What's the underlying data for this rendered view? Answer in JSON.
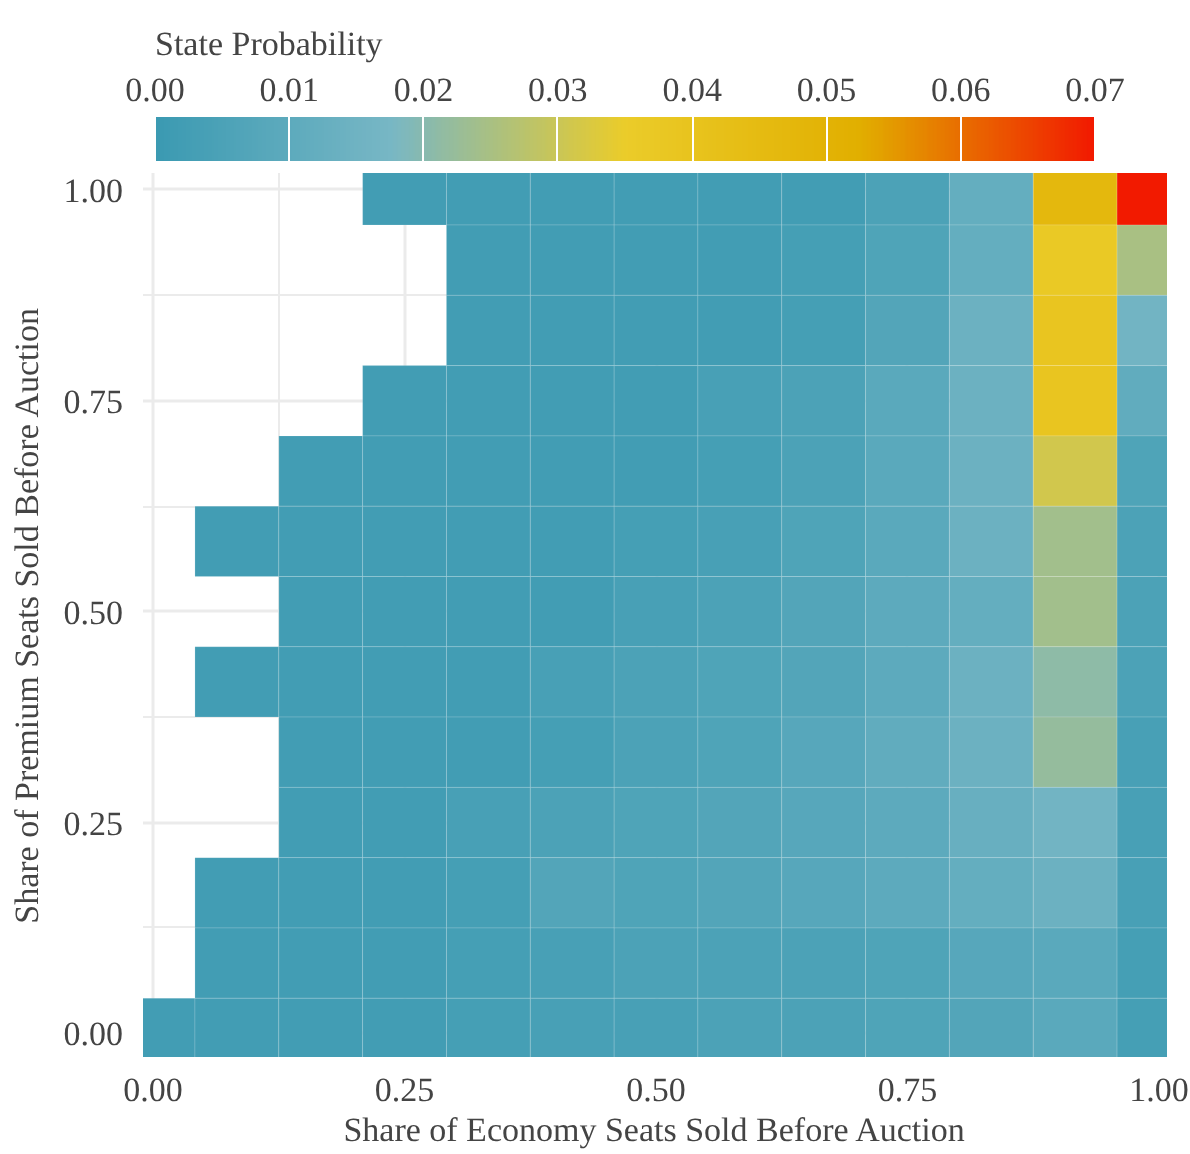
{
  "chart_data": {
    "type": "heatmap",
    "xlabel": "Share of Economy Seats Sold Before Auction",
    "ylabel": "Share of Premium Seats Sold Before Auction",
    "clabel": "State Probability",
    "x": [
      0,
      0.0833,
      0.1667,
      0.25,
      0.3333,
      0.4167,
      0.5,
      0.5833,
      0.6667,
      0.75,
      0.8333,
      0.9167,
      1
    ],
    "y": [
      1,
      0.9167,
      0.8333,
      0.75,
      0.6667,
      0.5833,
      0.5,
      0.4167,
      0.3333,
      0.25,
      0.1667,
      0.0833,
      0
    ],
    "cells": [
      [
        null,
        null,
        null,
        0.002,
        0.002,
        0.002,
        0.002,
        0.002,
        0.002,
        0.005,
        0.012,
        0.047,
        0.07
      ],
      [
        null,
        null,
        null,
        null,
        0.002,
        0.002,
        0.002,
        0.002,
        0.003,
        0.006,
        0.012,
        0.037,
        0.025
      ],
      [
        null,
        null,
        null,
        null,
        0.002,
        0.002,
        0.002,
        0.002,
        0.003,
        0.007,
        0.014,
        0.039,
        0.016
      ],
      [
        null,
        null,
        null,
        0.002,
        0.002,
        0.002,
        0.002,
        0.004,
        0.005,
        0.009,
        0.014,
        0.039,
        0.011
      ],
      [
        null,
        null,
        0.002,
        0.002,
        0.002,
        0.002,
        0.002,
        0.003,
        0.005,
        0.009,
        0.014,
        0.031,
        0.006
      ],
      [
        null,
        0.002,
        0.002,
        0.002,
        0.002,
        0.002,
        0.003,
        0.004,
        0.006,
        0.009,
        0.014,
        0.024,
        0.005
      ],
      [
        null,
        null,
        0.002,
        0.002,
        0.002,
        0.002,
        0.004,
        0.005,
        0.007,
        0.01,
        0.012,
        0.024,
        0.005
      ],
      [
        null,
        0.002,
        0.002,
        0.002,
        0.002,
        0.004,
        0.005,
        0.006,
        0.007,
        0.01,
        0.014,
        0.021,
        0.005
      ],
      [
        null,
        null,
        0.002,
        0.002,
        0.002,
        0.003,
        0.005,
        0.006,
        0.008,
        0.011,
        0.014,
        0.022,
        0.004
      ],
      [
        null,
        null,
        0.002,
        0.002,
        0.004,
        0.005,
        0.006,
        0.007,
        0.008,
        0.01,
        0.013,
        0.016,
        0.004
      ],
      [
        null,
        0.002,
        0.002,
        0.002,
        0.003,
        0.007,
        0.006,
        0.007,
        0.008,
        0.01,
        0.012,
        0.014,
        0.004
      ],
      [
        null,
        0.002,
        0.002,
        0.002,
        0.003,
        0.004,
        0.005,
        0.005,
        0.005,
        0.006,
        0.008,
        0.009,
        0.003
      ],
      [
        0.002,
        0.002,
        0.002,
        0.002,
        0.003,
        0.004,
        0.004,
        0.005,
        0.005,
        0.006,
        0.007,
        0.009,
        0.003
      ]
    ],
    "colors": [
      "#3b9ab2",
      "#78b7c5",
      "#ebcc2a",
      "#e1af00",
      "#f21a00"
    ],
    "clim": [
      0,
      0.07
    ],
    "cticks": [
      {
        "value": 0,
        "label": "0.00"
      },
      {
        "value": 0.01,
        "label": "0.01"
      },
      {
        "value": 0.02,
        "label": "0.02"
      },
      {
        "value": 0.03,
        "label": "0.03"
      },
      {
        "value": 0.04,
        "label": "0.04"
      },
      {
        "value": 0.05,
        "label": "0.05"
      },
      {
        "value": 0.06,
        "label": "0.06"
      },
      {
        "value": 0.07,
        "label": "0.07"
      }
    ],
    "xlim": [
      -0.01,
      1.008
    ],
    "ylim": [
      -0.028,
      1.02
    ],
    "xticks": [
      {
        "value": 0,
        "label": "0.00"
      },
      {
        "value": 0.25,
        "label": "0.25"
      },
      {
        "value": 0.5,
        "label": "0.50"
      },
      {
        "value": 0.75,
        "label": "0.75"
      },
      {
        "value": 1,
        "label": "1.00"
      }
    ],
    "yticks": [
      {
        "value": 0,
        "label": "0.00"
      },
      {
        "value": 0.25,
        "label": "0.25"
      },
      {
        "value": 0.5,
        "label": "0.50"
      },
      {
        "value": 0.75,
        "label": "0.75"
      },
      {
        "value": 1,
        "label": "1.00"
      }
    ],
    "grid": true
  }
}
